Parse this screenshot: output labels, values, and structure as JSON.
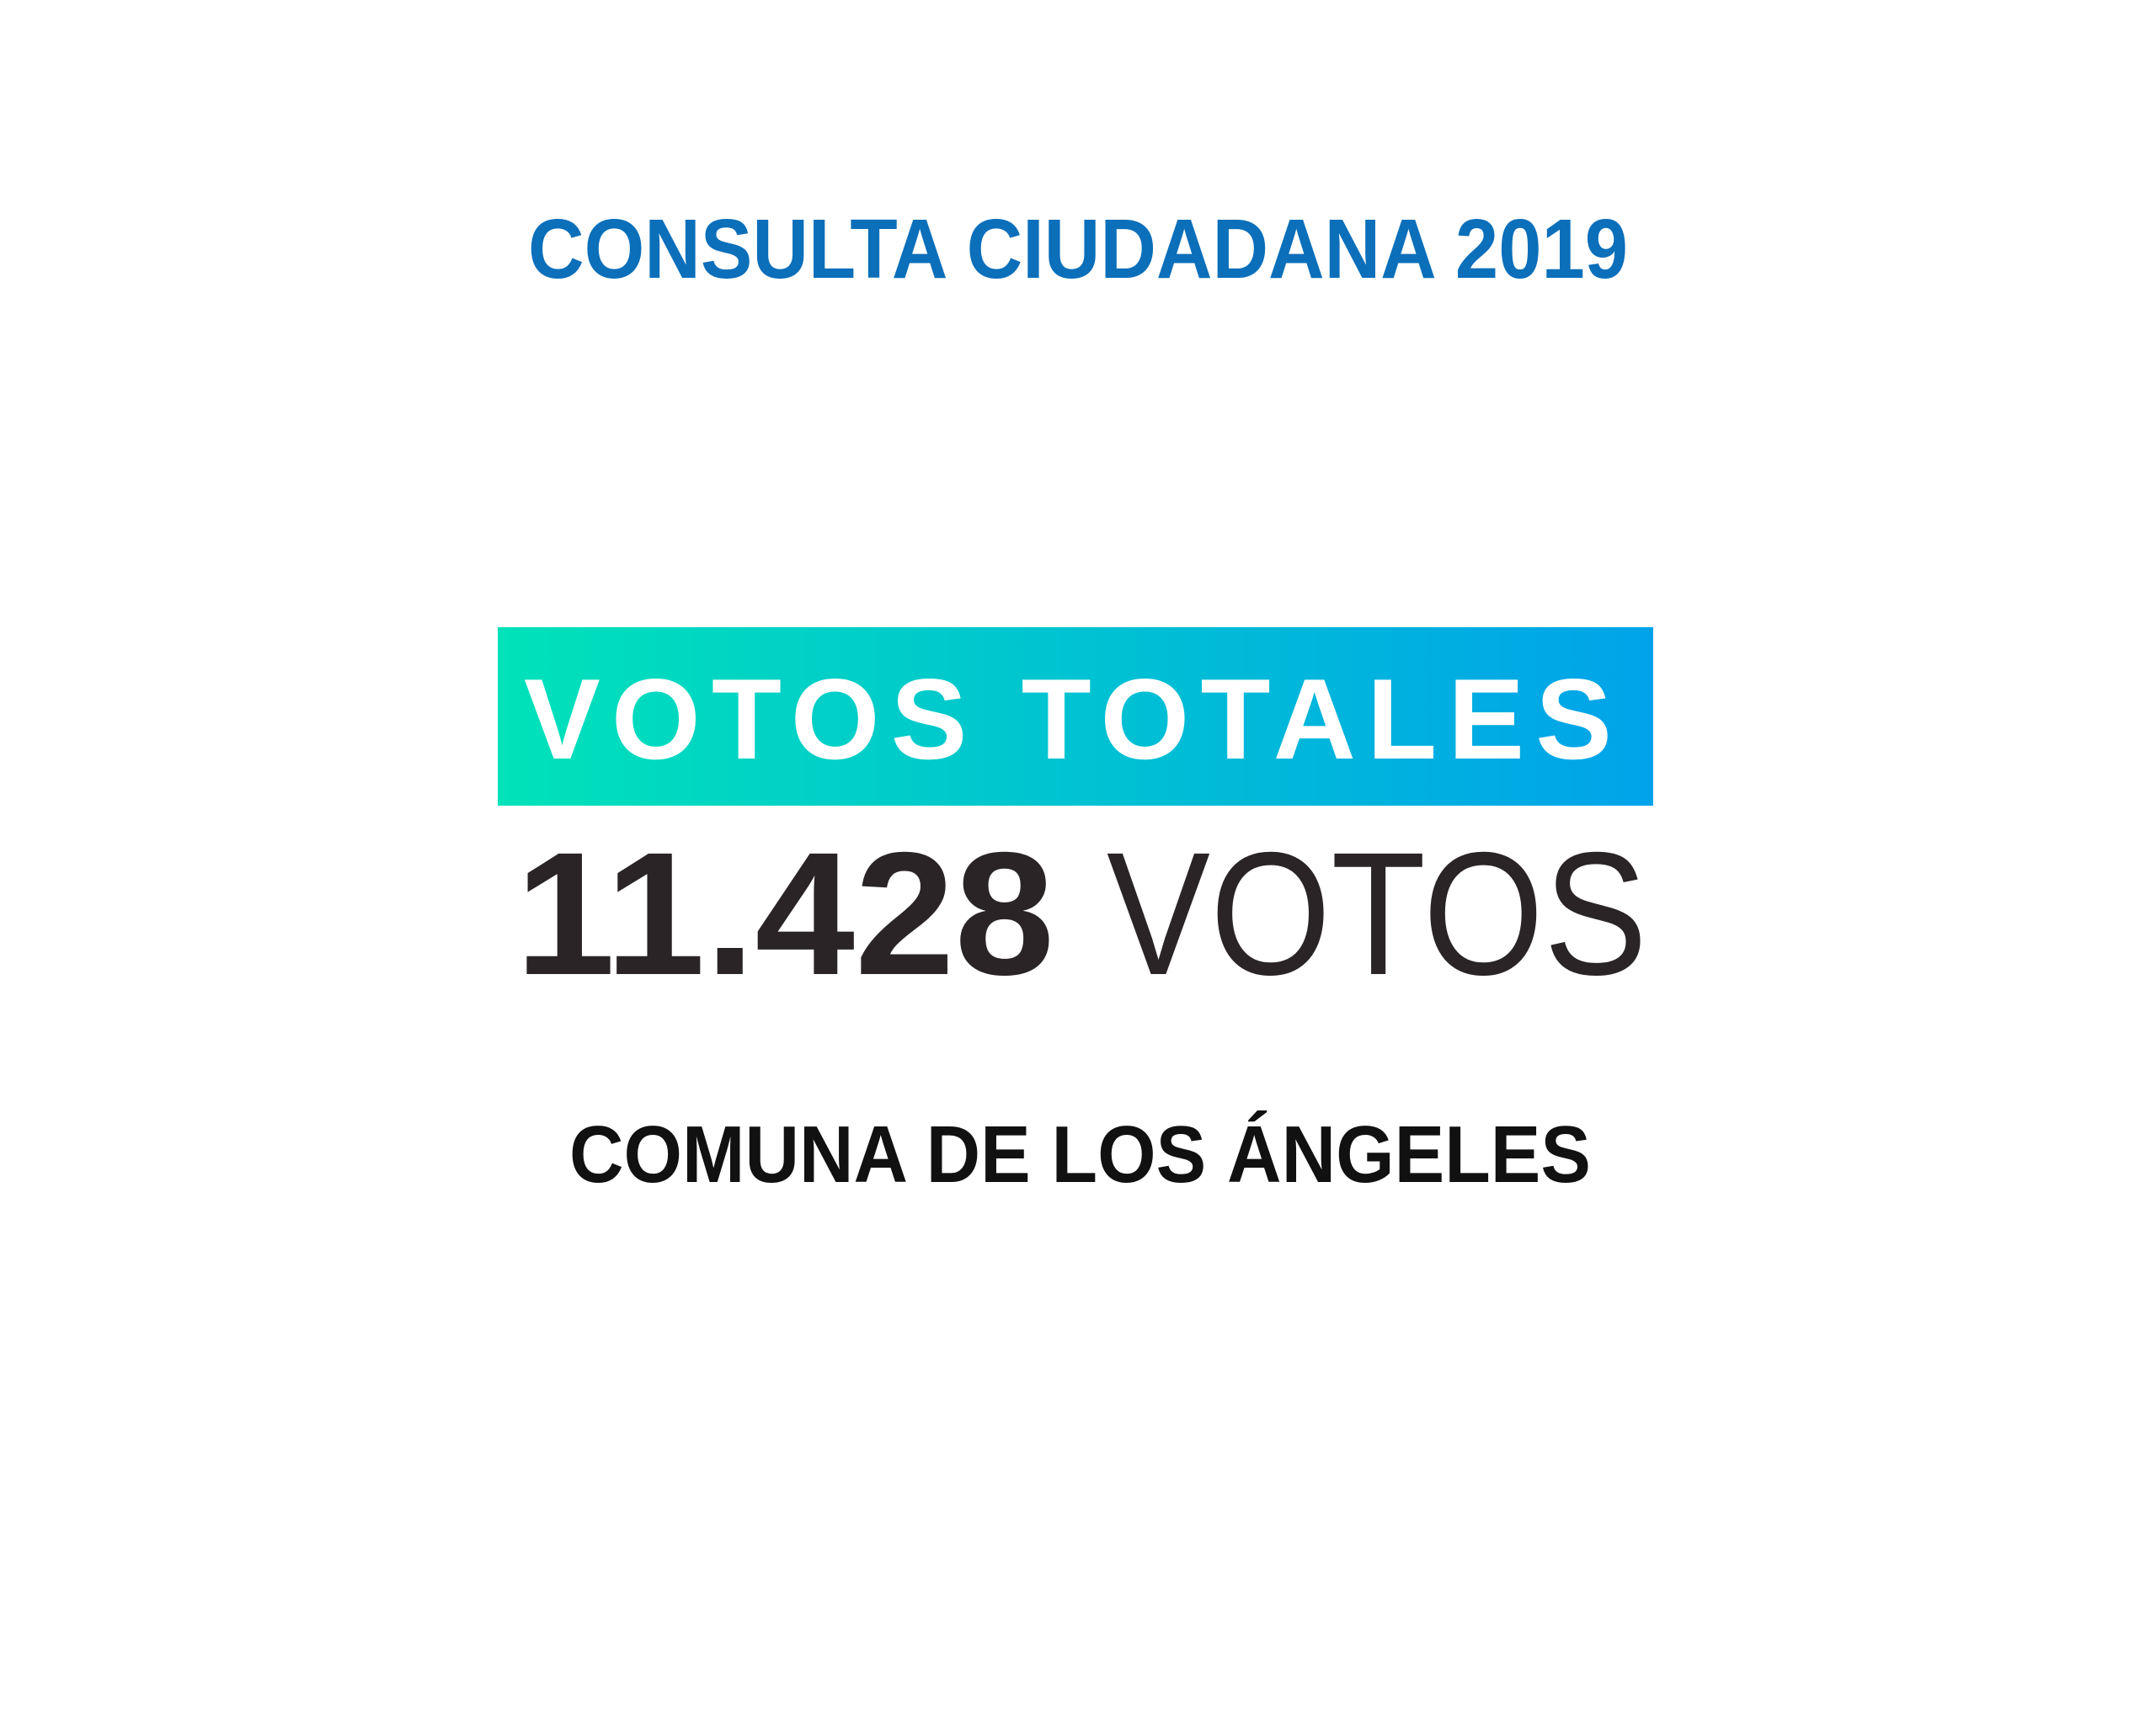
{
  "header": {
    "title": "CONSULTA CIUDADANA 2019"
  },
  "banner": {
    "label": "VOTOS TOTALES"
  },
  "total": {
    "number": "11.428",
    "unit": "VOTOS"
  },
  "footer": {
    "place": "COMUNA DE LOS ÁNGELES"
  }
}
